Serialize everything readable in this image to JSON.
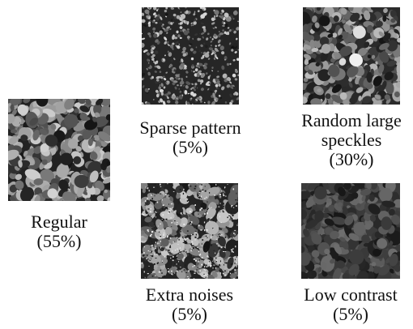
{
  "panels": {
    "regular": {
      "name": "Regular",
      "pct": "(55%)",
      "pattern": "regular"
    },
    "sparse": {
      "name": "Sparse pattern",
      "pct": "(5%)",
      "pattern": "sparse"
    },
    "random": {
      "name_line1": "Random large",
      "name_line2": "speckles",
      "pct": "(30%)",
      "pattern": "random-large"
    },
    "extra": {
      "name": "Extra noises",
      "pct": "(5%)",
      "pattern": "extra-noise"
    },
    "low": {
      "name": "Low contrast",
      "pct": "(5%)",
      "pattern": "low-contrast"
    }
  },
  "colors": {
    "background": "#ffffff",
    "text": "#111111"
  }
}
